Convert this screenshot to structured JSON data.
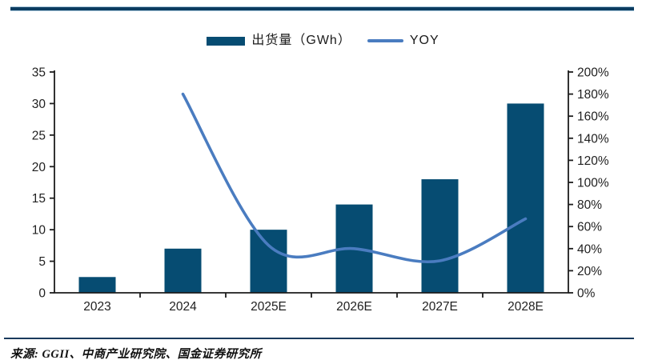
{
  "page": {
    "source_note": "来源: GGII、中商产业研究院、国金证券研究所"
  },
  "legend": {
    "bar_label": "出货量（GWh）",
    "line_label": "YOY"
  },
  "colors": {
    "bar": "#064C72",
    "line": "#4A7CC0",
    "axis_line": "#1C1C1C",
    "tick_label": "#1F1F1F",
    "top_rule": "#0C3C60",
    "top_rule_edge": "#A9C8DC",
    "footer_rule": "#1A3A5C"
  },
  "chart_data": {
    "type": "bar",
    "subtype": "combo-bar-line-dual-axis",
    "title": "",
    "categories": [
      "2023",
      "2024",
      "2025E",
      "2026E",
      "2027E",
      "2028E"
    ],
    "series": [
      {
        "name": "出货量（GWh）",
        "type": "bar",
        "axis": "left",
        "values": [
          2.5,
          7,
          10,
          14,
          18,
          30
        ]
      },
      {
        "name": "YOY",
        "type": "line",
        "axis": "right",
        "unit": "%",
        "smooth": true,
        "values": [
          null,
          180,
          43,
          40,
          29,
          67
        ]
      }
    ],
    "left_axis": {
      "min": 0,
      "max": 35,
      "step": 5,
      "suffix": ""
    },
    "right_axis": {
      "min": 0,
      "max": 200,
      "step": 20,
      "suffix": "%"
    },
    "grid": false,
    "legend_position": "top"
  }
}
